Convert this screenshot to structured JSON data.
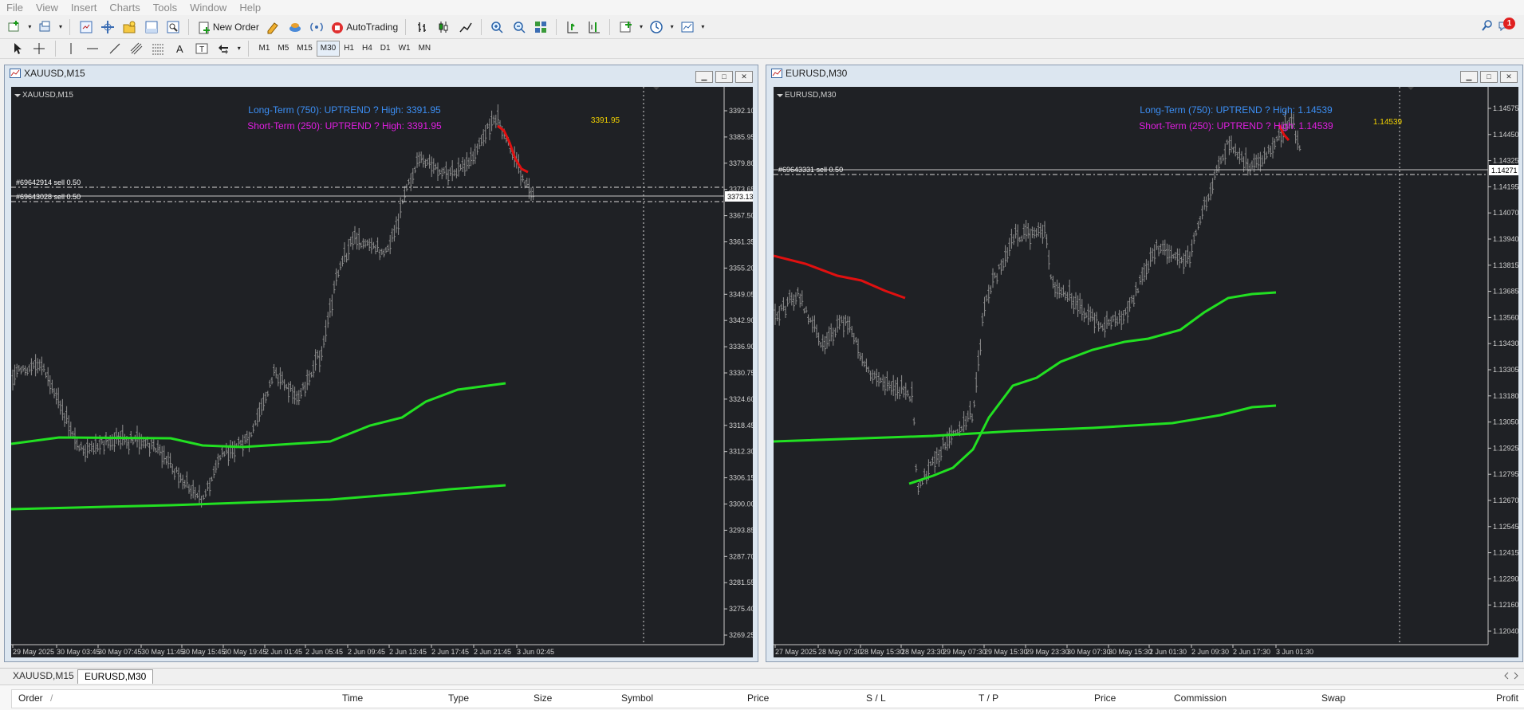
{
  "menu": [
    "File",
    "View",
    "Insert",
    "Charts",
    "Tools",
    "Window",
    "Help"
  ],
  "toolbar": {
    "new_order": "New Order",
    "autotrading": "AutoTrading",
    "notif_count": "1"
  },
  "timeframes": [
    "M1",
    "M5",
    "M15",
    "M30",
    "H1",
    "H4",
    "D1",
    "W1",
    "MN"
  ],
  "active_timeframe": "M30",
  "charts": [
    {
      "window_title": "XAUUSD,M15",
      "inner_label": "XAUUSD,M15",
      "info_long": "Long-Term (750): UPTREND ? High: 3391.95",
      "info_short": "Short-Term (250): UPTREND ? High: 3391.95",
      "high_label": "3391.95",
      "orders": [
        "#69642914 sell 0.50",
        "#69643028 sell 0.50"
      ],
      "current_price": "3373.13",
      "price_axis": [
        "3392.10",
        "3385.95",
        "3379.80",
        "3373.65",
        "3367.50",
        "3361.35",
        "3355.20",
        "3349.05",
        "3342.90",
        "3336.90",
        "3330.75",
        "3324.60",
        "3318.45",
        "3312.30",
        "3306.15",
        "3300.00",
        "3293.85",
        "3287.70",
        "3281.55",
        "3275.40",
        "3269.25"
      ],
      "time_axis": [
        "29 May 2025",
        "30 May 03:45",
        "30 May 07:45",
        "30 May 11:45",
        "30 May 15:45",
        "30 May 19:45",
        "2 Jun 01:45",
        "2 Jun 05:45",
        "2 Jun 09:45",
        "2 Jun 13:45",
        "2 Jun 17:45",
        "2 Jun 21:45",
        "3 Jun 02:45"
      ]
    },
    {
      "window_title": "EURUSD,M30",
      "inner_label": "EURUSD,M30",
      "info_long": "Long-Term (750): UPTREND ? High: 1.14539",
      "info_short": "Short-Term (250): UPTREND ? High: 1.14539",
      "high_label": "1.14539",
      "orders": [
        "#69643331 sell 0.50"
      ],
      "current_price": "1.14271",
      "price_axis": [
        "1.14575",
        "1.14450",
        "1.14325",
        "1.14195",
        "1.14070",
        "1.13940",
        "1.13815",
        "1.13685",
        "1.13560",
        "1.13430",
        "1.13305",
        "1.13180",
        "1.13050",
        "1.12925",
        "1.12795",
        "1.12670",
        "1.12545",
        "1.12415",
        "1.12290",
        "1.12160",
        "1.12040"
      ],
      "time_axis": [
        "27 May 2025",
        "28 May 07:30",
        "28 May 15:30",
        "28 May 23:30",
        "29 May 07:30",
        "29 May 15:30",
        "29 May 23:30",
        "30 May 07:30",
        "30 May 15:30",
        "2 Jun 01:30",
        "2 Jun 09:30",
        "2 Jun 17:30",
        "3 Jun 01:30"
      ]
    }
  ],
  "tabs": [
    "XAUUSD,M15",
    "EURUSD,M30"
  ],
  "active_tab": "EURUSD,M30",
  "terminal": {
    "columns": [
      "Order",
      "/",
      "Time",
      "Type",
      "Size",
      "Symbol",
      "Price",
      "S / L",
      "T / P",
      "Price",
      "Commission",
      "Swap",
      "Profit"
    ]
  },
  "colors": {
    "chart_bg": "#1f2125",
    "candle": "#8e8e8e",
    "ma_green": "#22e022",
    "ma_red": "#e01010",
    "info_long": "#3c8ff5",
    "info_short": "#e01ee0",
    "high_label": "#f0d000"
  }
}
